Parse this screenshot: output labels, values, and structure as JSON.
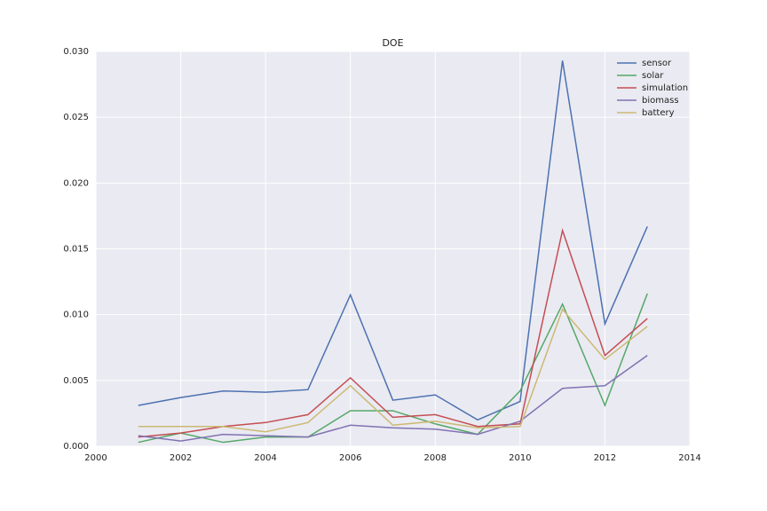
{
  "chart_data": {
    "type": "line",
    "title": "DOE",
    "x": [
      2001,
      2002,
      2003,
      2004,
      2005,
      2006,
      2007,
      2008,
      2009,
      2010,
      2011,
      2012,
      2013
    ],
    "series": [
      {
        "name": "sensor",
        "color": "#4c72b0",
        "values": [
          0.0031,
          0.0037,
          0.0042,
          0.0041,
          0.0043,
          0.0115,
          0.0035,
          0.0039,
          0.002,
          0.0034,
          0.0293,
          0.0093,
          0.0167
        ]
      },
      {
        "name": "solar",
        "color": "#55a868",
        "values": [
          0.0003,
          0.001,
          0.0003,
          0.0007,
          0.0007,
          0.0027,
          0.0027,
          0.0017,
          0.0009,
          0.0042,
          0.0108,
          0.0031,
          0.0116
        ]
      },
      {
        "name": "simulation",
        "color": "#c44e52",
        "values": [
          0.0007,
          0.001,
          0.0015,
          0.0018,
          0.0024,
          0.0052,
          0.0022,
          0.0024,
          0.0015,
          0.0017,
          0.0164,
          0.0069,
          0.0097
        ]
      },
      {
        "name": "biomass",
        "color": "#8172b2",
        "values": [
          0.0008,
          0.0004,
          0.0009,
          0.0008,
          0.0007,
          0.0016,
          0.0014,
          0.0013,
          0.0009,
          0.0019,
          0.0044,
          0.0046,
          0.0069
        ]
      },
      {
        "name": "battery",
        "color": "#ccb974",
        "values": [
          0.0015,
          0.0015,
          0.0015,
          0.0011,
          0.0018,
          0.0046,
          0.0016,
          0.0019,
          0.0014,
          0.0015,
          0.0104,
          0.0066,
          0.0091
        ]
      }
    ],
    "xlim": [
      2000,
      2014
    ],
    "xticks": [
      2000,
      2002,
      2004,
      2006,
      2008,
      2010,
      2012,
      2014
    ],
    "ylim": [
      0,
      0.03
    ],
    "yticks": [
      {
        "value": 0,
        "label": "0.000"
      },
      {
        "value": 0.005,
        "label": "0.005"
      },
      {
        "value": 0.01,
        "label": "0.010"
      },
      {
        "value": 0.015,
        "label": "0.015"
      },
      {
        "value": 0.02,
        "label": "0.020"
      },
      {
        "value": 0.025,
        "label": "0.025"
      },
      {
        "value": 0.03,
        "label": "0.030"
      }
    ],
    "grid": true,
    "legend": "upper right"
  }
}
